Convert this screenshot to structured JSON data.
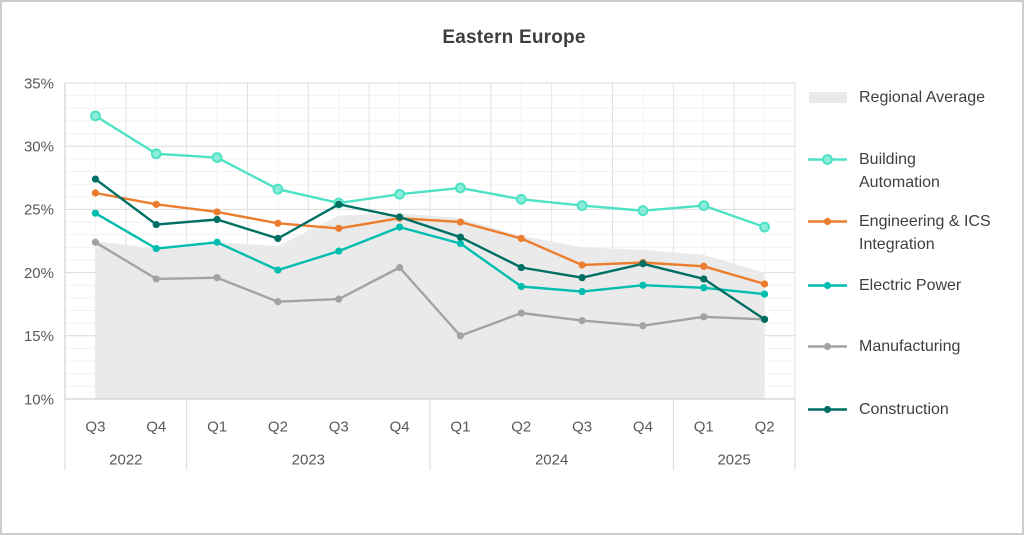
{
  "chart_data": {
    "type": "line",
    "title": "Eastern Europe",
    "unit": "percent",
    "legend_position": "right",
    "grid": true,
    "categories": [
      "Q3 2022",
      "Q4 2022",
      "Q1 2023",
      "Q2 2023",
      "Q3 2023",
      "Q4 2023",
      "Q1 2024",
      "Q2 2024",
      "Q3 2024",
      "Q4 2024",
      "Q1 2025",
      "Q2 2025"
    ],
    "x_axis": {
      "quarter_labels": [
        "Q3",
        "Q4",
        "Q1",
        "Q2",
        "Q3",
        "Q4",
        "Q1",
        "Q2",
        "Q3",
        "Q4",
        "Q1",
        "Q2"
      ],
      "year_groups": [
        {
          "label": "2022",
          "span": 2
        },
        {
          "label": "2023",
          "span": 4
        },
        {
          "label": "2024",
          "span": 4
        },
        {
          "label": "2025",
          "span": 2
        }
      ]
    },
    "y_axis": {
      "min": 10,
      "max": 35,
      "tick_step": 5,
      "minor_step": 1,
      "tick_labels": [
        "35%",
        "30%",
        "25%",
        "20%",
        "15%",
        "10%"
      ]
    },
    "series": [
      {
        "name": "Regional Average",
        "type": "area",
        "color": "#EAEAEA",
        "values": [
          22.5,
          21.9,
          22.4,
          22.1,
          24.5,
          24.7,
          24.3,
          22.9,
          22.0,
          21.8,
          21.4,
          20.0
        ]
      },
      {
        "name": "Building Automation",
        "type": "line",
        "marker": "ring",
        "color": "#4EE2C5",
        "marker_fill": "#8BEDD9",
        "values": [
          32.4,
          29.4,
          29.1,
          26.6,
          25.5,
          26.2,
          26.7,
          25.8,
          25.3,
          24.9,
          25.3,
          23.6
        ]
      },
      {
        "name": "Engineering & ICS Integration",
        "type": "line",
        "marker": "dot",
        "color": "#EC7D2E",
        "values": [
          26.3,
          25.4,
          24.8,
          23.9,
          23.5,
          24.3,
          24.0,
          22.7,
          20.6,
          20.8,
          20.5,
          19.1
        ]
      },
      {
        "name": "Electric Power",
        "type": "line",
        "marker": "dot",
        "color": "#00BDB0",
        "values": [
          24.7,
          21.9,
          22.4,
          20.2,
          21.7,
          23.6,
          22.3,
          18.9,
          18.5,
          19.0,
          18.8,
          18.3
        ]
      },
      {
        "name": "Manufacturing",
        "type": "line",
        "marker": "dot",
        "color": "#A3A3A3",
        "values": [
          22.4,
          19.5,
          19.6,
          17.7,
          17.9,
          20.4,
          15.0,
          16.8,
          16.2,
          15.8,
          16.5,
          16.3
        ]
      },
      {
        "name": "Construction",
        "type": "line",
        "marker": "dot",
        "color": "#006F63",
        "values": [
          27.4,
          23.8,
          24.2,
          22.7,
          25.4,
          24.4,
          22.8,
          20.4,
          19.6,
          20.7,
          19.5,
          16.3
        ]
      }
    ]
  }
}
